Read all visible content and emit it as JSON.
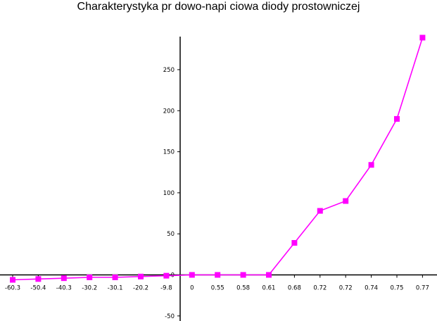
{
  "chart_data": {
    "type": "line",
    "title": "Charakterystyka pr  dowo-napi  ciowa diody prostowniczej",
    "xlabel": "",
    "ylabel": "",
    "categories": [
      "-60.3",
      "-50.4",
      "-40.3",
      "-30.2",
      "-30.1",
      "-20.2",
      "-9.8",
      "0",
      "0.55",
      "0.58",
      "0.61",
      "0.68",
      "0.72",
      "0.72",
      "0.74",
      "0.75",
      "0.77"
    ],
    "series": [
      {
        "values": [
          -6,
          -5,
          -4,
          -3,
          -3,
          -2,
          -1,
          0,
          0,
          0,
          0,
          39,
          78,
          90,
          134,
          190,
          289
        ]
      }
    ],
    "ylim": [
      -50,
      290
    ],
    "y_ticks": [
      "-50",
      "0",
      "50",
      "100",
      "150",
      "200",
      "250"
    ],
    "y_tick_values": [
      -50,
      0,
      50,
      100,
      150,
      200,
      250
    ],
    "line_color": "#ff00ff",
    "marker_color": "#ff00ff",
    "grid": false,
    "legend": "none"
  }
}
